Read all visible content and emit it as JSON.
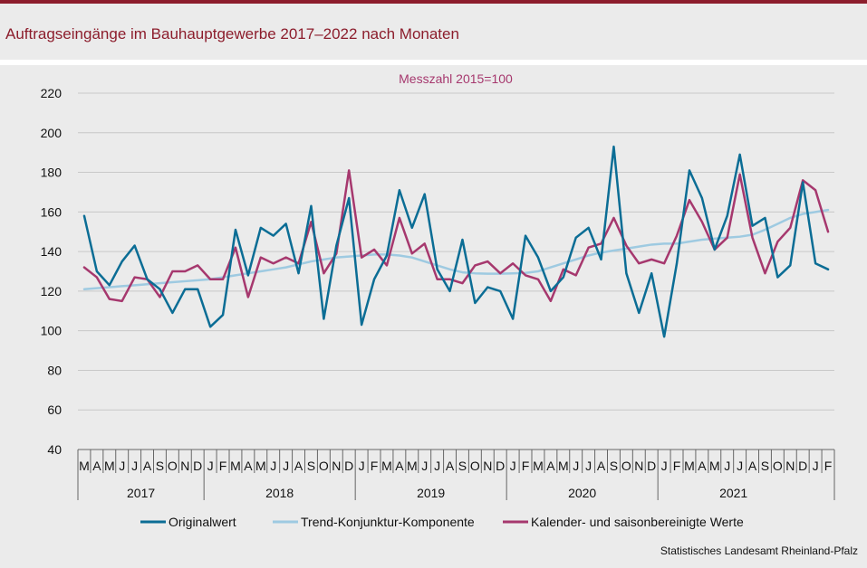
{
  "header": {
    "title": "Auftragseingänge im Bauhauptgewerbe 2017–2022 nach Monaten",
    "source": "Statistisches Landesamt Rheinland-Pfalz"
  },
  "colors": {
    "brand": "#8c1d2c",
    "original": "#0b6d95",
    "trend": "#9ecae1",
    "adjusted": "#a6386e"
  },
  "chart_data": {
    "type": "line",
    "title": "Messzahl 2015=100",
    "ylim": [
      40,
      220
    ],
    "yticks": [
      40,
      60,
      80,
      100,
      120,
      140,
      160,
      180,
      200,
      220
    ],
    "month_labels": [
      "M",
      "A",
      "M",
      "J",
      "J",
      "A",
      "S",
      "O",
      "N",
      "D",
      "J",
      "F",
      "M",
      "A",
      "M",
      "J",
      "J",
      "A",
      "S",
      "O",
      "N",
      "D",
      "J",
      "F",
      "M",
      "A",
      "M",
      "J",
      "J",
      "A",
      "S",
      "O",
      "N",
      "D",
      "J",
      "F",
      "M",
      "A",
      "M",
      "J",
      "J",
      "A",
      "S",
      "O",
      "N",
      "D",
      "J",
      "F",
      "M",
      "A",
      "M",
      "J",
      "J",
      "A",
      "S",
      "O",
      "N",
      "D",
      "J",
      "F"
    ],
    "years": [
      {
        "label": "2017",
        "start": 0,
        "end": 10
      },
      {
        "label": "2018",
        "start": 10,
        "end": 22
      },
      {
        "label": "2019",
        "start": 22,
        "end": 34
      },
      {
        "label": "2020",
        "start": 34,
        "end": 46
      },
      {
        "label": "2021",
        "start": 46,
        "end": 58
      }
    ],
    "series": [
      {
        "name": "Originalwert",
        "color": "#0b6d95",
        "width": 2.5,
        "values": [
          158,
          130,
          123,
          135,
          143,
          126,
          121,
          109,
          121,
          121,
          102,
          108,
          151,
          128,
          152,
          148,
          154,
          129,
          163,
          106,
          143,
          167,
          103,
          126,
          138,
          171,
          152,
          169,
          131,
          120,
          146,
          114,
          122,
          120,
          106,
          148,
          137,
          120,
          127,
          147,
          152,
          136,
          193,
          129,
          109,
          129,
          97,
          134,
          181,
          167,
          141,
          158,
          189,
          153,
          157,
          127,
          133,
          175,
          134,
          131
        ]
      },
      {
        "name": "Trend-Konjunktur-Komponente",
        "color": "#9ecae1",
        "width": 2.5,
        "values": [
          121,
          121.5,
          122,
          122.5,
          123,
          123.5,
          124,
          124.5,
          125,
          125.5,
          126,
          127,
          128,
          129,
          130,
          131,
          132,
          133.5,
          135,
          136,
          137,
          137.5,
          138,
          138.5,
          138.5,
          138,
          137,
          135,
          133,
          131,
          129.5,
          129,
          128.8,
          128.8,
          129,
          129.2,
          130,
          132,
          134,
          136,
          138,
          139.5,
          140.5,
          141.5,
          142.5,
          143.5,
          144,
          144,
          145,
          146,
          146.5,
          147,
          147.5,
          148.5,
          151,
          154,
          157,
          159,
          160,
          161
        ]
      },
      {
        "name": "Kalender- und saisonbereinigte Werte",
        "color": "#a6386e",
        "width": 2.5,
        "values": [
          132,
          127,
          116,
          115,
          127,
          126,
          117,
          130,
          130,
          133,
          126,
          126,
          142,
          117,
          137,
          134,
          137,
          134,
          155,
          129,
          139,
          181,
          137,
          141,
          133,
          157,
          139,
          144,
          126,
          126,
          124,
          133,
          135,
          129,
          134,
          128,
          126,
          115,
          131,
          128,
          142,
          144,
          157,
          143,
          134,
          136,
          134,
          148,
          166,
          155,
          141,
          147,
          179,
          147,
          129,
          145,
          152,
          176,
          171,
          150
        ]
      }
    ]
  }
}
